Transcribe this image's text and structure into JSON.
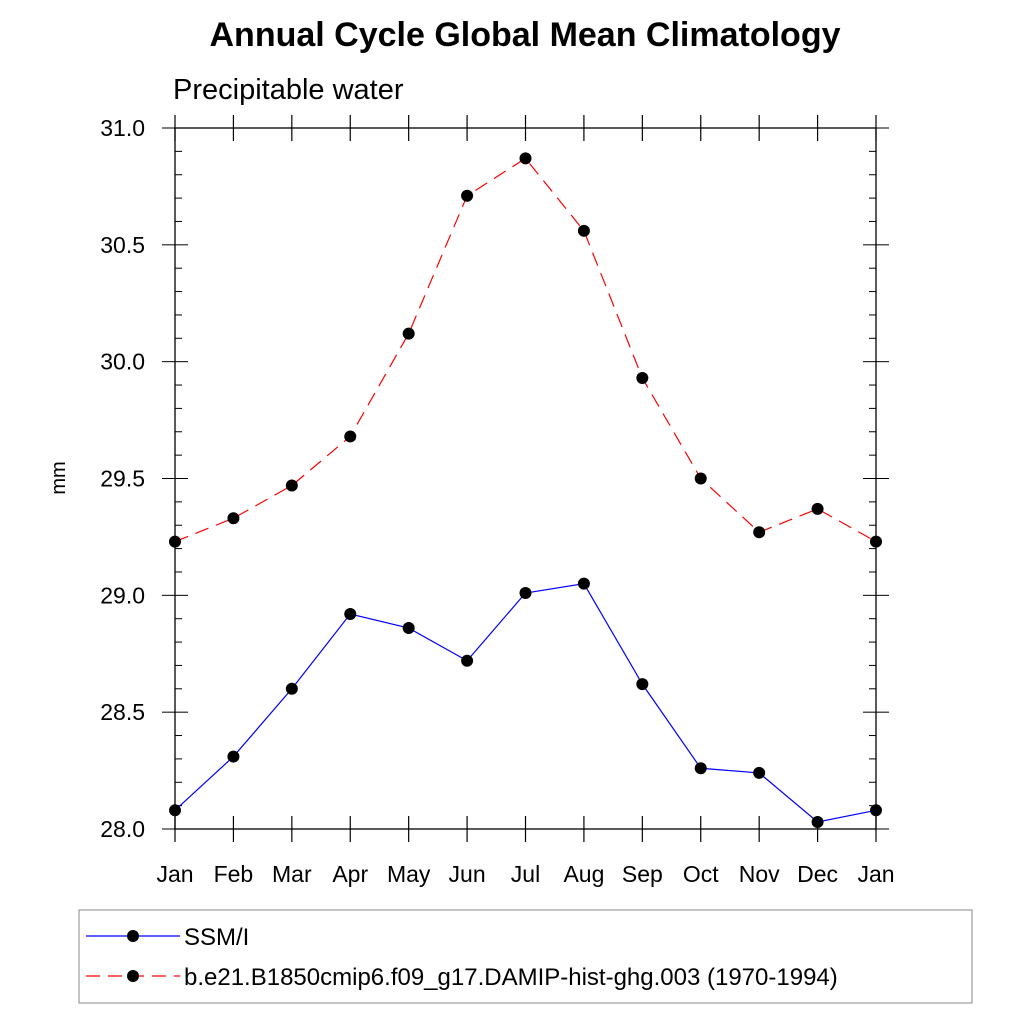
{
  "chart_data": {
    "type": "line",
    "title": "Annual Cycle Global Mean Climatology",
    "subtitle": "Precipitable water",
    "xlabel": "",
    "ylabel": "mm",
    "categories": [
      "Jan",
      "Feb",
      "Mar",
      "Apr",
      "May",
      "Jun",
      "Jul",
      "Aug",
      "Sep",
      "Oct",
      "Nov",
      "Dec",
      "Jan"
    ],
    "ylim": [
      28.0,
      31.0
    ],
    "yticks": [
      "28.0",
      "28.5",
      "29.0",
      "29.5",
      "30.0",
      "30.5",
      "31.0"
    ],
    "grid": false,
    "legend_position": "bottom",
    "series": [
      {
        "name": "SSM/I",
        "color": "#0000ff",
        "line_style": "solid",
        "marker": "filled-circle",
        "values": [
          28.08,
          28.31,
          28.6,
          28.92,
          28.86,
          28.72,
          29.01,
          29.05,
          28.62,
          28.26,
          28.24,
          28.03,
          28.08
        ]
      },
      {
        "name": "b.e21.B1850cmip6.f09_g17.DAMIP-hist-ghg.003 (1970-1994)",
        "color": "#ff0000",
        "line_style": "dashed",
        "marker": "filled-circle",
        "values": [
          29.23,
          29.33,
          29.47,
          29.68,
          30.12,
          30.71,
          30.87,
          30.56,
          29.93,
          29.5,
          29.27,
          29.37,
          29.23
        ]
      }
    ]
  }
}
